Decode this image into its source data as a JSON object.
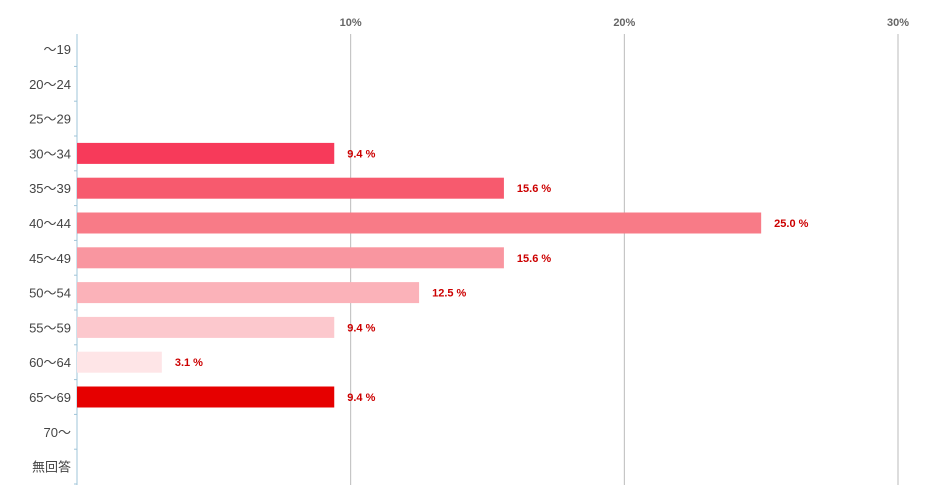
{
  "chart_data": {
    "type": "bar",
    "orientation": "horizontal",
    "title": "",
    "xlabel": "",
    "ylabel": "",
    "categories": [
      "〜19",
      "20〜24",
      "25〜29",
      "30〜34",
      "35〜39",
      "40〜44",
      "45〜49",
      "50〜54",
      "55〜59",
      "60〜64",
      "65〜69",
      "70〜",
      "無回答"
    ],
    "values": [
      0,
      0,
      0,
      9.4,
      15.6,
      25.0,
      15.6,
      12.5,
      9.4,
      3.1,
      9.4,
      0,
      0
    ],
    "value_labels": [
      "",
      "",
      "",
      "9.4 %",
      "15.6 %",
      "25.0 %",
      "15.6 %",
      "12.5 %",
      "9.4 %",
      "3.1 %",
      "9.4 %",
      "",
      ""
    ],
    "bar_colors": [
      "#f73a5a",
      "#f73a5a",
      "#f73a5a",
      "#f73a5a",
      "#f75a6e",
      "#f87b87",
      "#f996a0",
      "#fbb2b9",
      "#fcc8cd",
      "#fee5e7",
      "#e60000",
      "#e60000",
      "#e60000"
    ],
    "xlim": [
      0,
      30
    ],
    "ticks": [
      10,
      20,
      30
    ],
    "tick_labels": [
      "10%",
      "20%",
      "30%"
    ],
    "grid": true,
    "legend": "none",
    "colors": {
      "axis": "#9fc4d8",
      "grid": "#bbbbbb",
      "category_text": "#444444",
      "tick_text": "#666666",
      "value_text": "#cc0000"
    }
  }
}
